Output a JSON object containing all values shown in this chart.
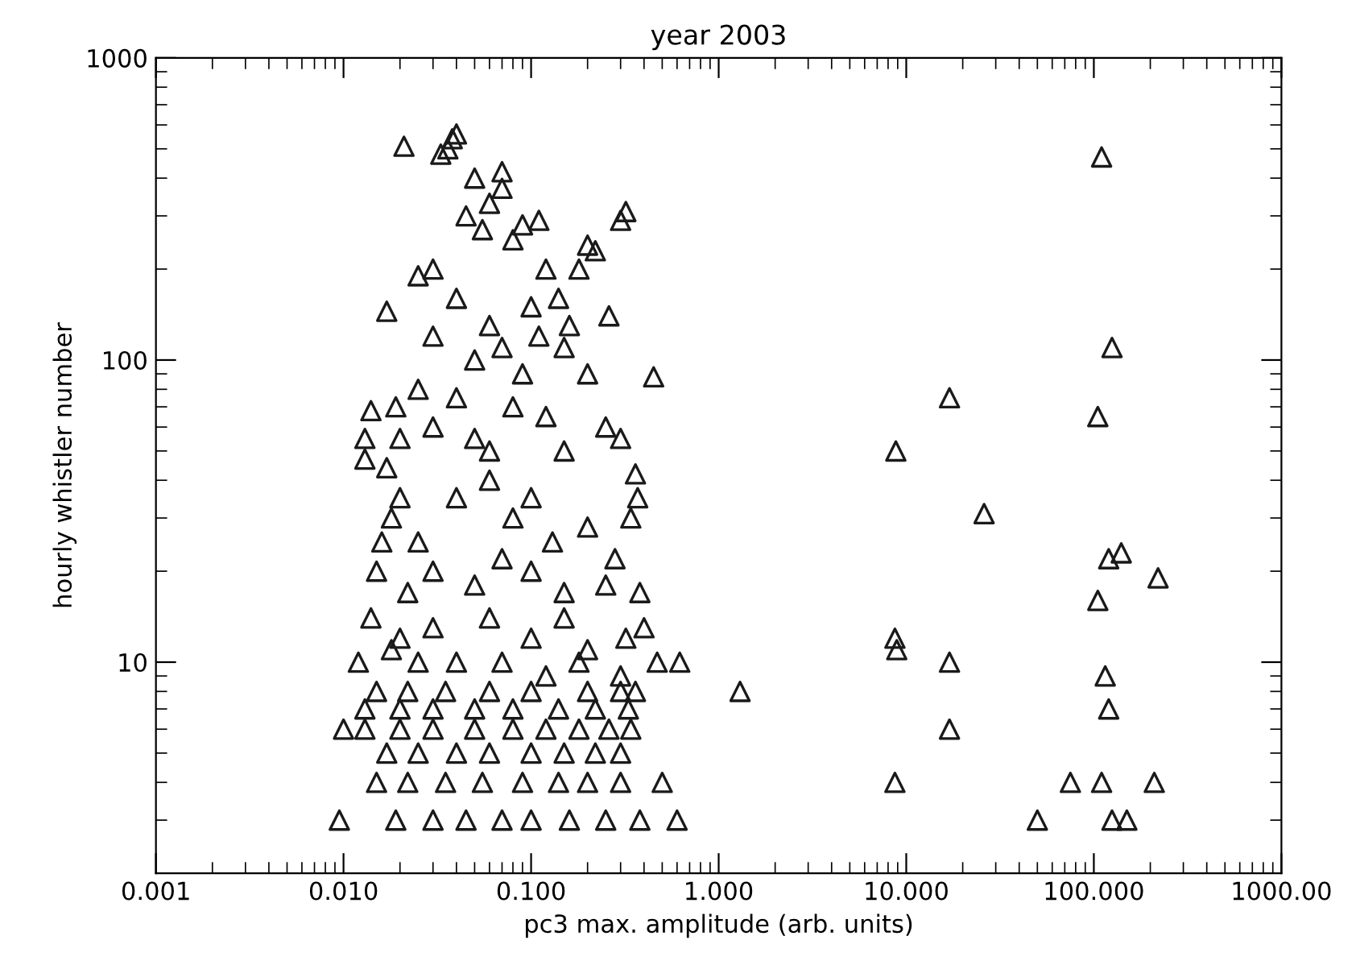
{
  "chart_data": {
    "type": "scatter",
    "title": "year 2003",
    "xlabel": "pc3 max. amplitude (arb. units)",
    "ylabel": "hourly whistler number",
    "log": "xy",
    "grid": false,
    "marker": "triangle",
    "color": "#1a1a1a",
    "xlim": [
      0.001,
      1000
    ],
    "ylim": [
      2,
      1000
    ],
    "xticks": [
      {
        "value": 0.001,
        "label": "0.001"
      },
      {
        "value": 0.01,
        "label": "0.010"
      },
      {
        "value": 0.1,
        "label": "0.100"
      },
      {
        "value": 1,
        "label": "1.000"
      },
      {
        "value": 10,
        "label": "10.000"
      },
      {
        "value": 100,
        "label": "100.000"
      },
      {
        "value": 1000,
        "label": "1000.00"
      }
    ],
    "yticks": [
      10,
      100,
      1000
    ],
    "x": [
      0.021,
      0.033,
      0.036,
      0.04,
      0.038,
      0.05,
      0.06,
      0.07,
      0.07,
      0.045,
      0.055,
      0.09,
      0.11,
      0.2,
      0.22,
      0.3,
      0.32,
      0.08,
      0.12,
      0.03,
      0.025,
      0.017,
      0.04,
      0.06,
      0.1,
      0.14,
      0.16,
      0.26,
      0.18,
      0.05,
      0.07,
      0.09,
      0.11,
      0.15,
      0.08,
      0.03,
      0.025,
      0.019,
      0.014,
      0.013,
      0.013,
      0.017,
      0.02,
      0.03,
      0.04,
      0.05,
      0.06,
      0.12,
      0.2,
      0.15,
      0.25,
      0.3,
      0.45,
      0.36,
      0.37,
      0.34,
      0.02,
      0.018,
      0.016,
      0.025,
      0.04,
      0.06,
      0.08,
      0.1,
      0.13,
      0.2,
      0.28,
      0.015,
      0.022,
      0.03,
      0.05,
      0.07,
      0.1,
      0.15,
      0.25,
      0.38,
      0.014,
      0.02,
      0.03,
      0.06,
      0.1,
      0.15,
      0.2,
      0.32,
      0.4,
      0.47,
      0.62,
      1.3,
      0.012,
      0.018,
      0.025,
      0.04,
      0.07,
      0.12,
      0.18,
      0.3,
      0.015,
      0.022,
      0.035,
      0.06,
      0.1,
      0.2,
      0.3,
      0.36,
      0.013,
      0.02,
      0.03,
      0.05,
      0.08,
      0.14,
      0.22,
      0.33,
      0.01,
      0.013,
      0.02,
      0.03,
      0.05,
      0.08,
      0.12,
      0.18,
      0.26,
      0.34,
      0.017,
      0.025,
      0.04,
      0.06,
      0.1,
      0.15,
      0.22,
      0.3,
      0.015,
      0.022,
      0.035,
      0.055,
      0.09,
      0.14,
      0.2,
      0.3,
      0.5,
      0.0095,
      0.019,
      0.03,
      0.045,
      0.07,
      0.1,
      0.16,
      0.25,
      0.38,
      0.6,
      8.8,
      17,
      26,
      8.7,
      8.9,
      17,
      17,
      8.7,
      110,
      125,
      105,
      120,
      140,
      220,
      105,
      115,
      120,
      75,
      110,
      210,
      50,
      125,
      150
    ],
    "values": [
      510,
      480,
      500,
      560,
      540,
      400,
      330,
      420,
      370,
      300,
      270,
      280,
      290,
      240,
      230,
      290,
      310,
      250,
      200,
      200,
      190,
      145,
      160,
      130,
      150,
      160,
      130,
      140,
      200,
      100,
      110,
      90,
      120,
      110,
      70,
      120,
      80,
      70,
      68,
      55,
      47,
      44,
      55,
      60,
      75,
      55,
      50,
      65,
      90,
      50,
      60,
      55,
      88,
      42,
      35,
      30,
      35,
      30,
      25,
      25,
      35,
      40,
      30,
      35,
      25,
      28,
      22,
      20,
      17,
      20,
      18,
      22,
      20,
      17,
      18,
      17,
      14,
      12,
      13,
      14,
      12,
      14,
      11,
      12,
      13,
      10,
      10,
      8,
      10,
      11,
      10,
      10,
      10,
      9,
      10,
      9,
      8,
      8,
      8,
      8,
      8,
      8,
      8,
      8,
      7,
      7,
      7,
      7,
      7,
      7,
      7,
      7,
      6,
      6,
      6,
      6,
      6,
      6,
      6,
      6,
      6,
      6,
      5,
      5,
      5,
      5,
      5,
      5,
      5,
      5,
      4,
      4,
      4,
      4,
      4,
      4,
      4,
      4,
      4,
      3,
      3,
      3,
      3,
      3,
      3,
      3,
      3,
      3,
      3,
      50,
      75,
      31,
      12,
      11,
      10,
      6,
      4,
      470,
      110,
      65,
      22,
      23,
      19,
      16,
      9,
      7,
      4,
      4,
      4,
      3,
      3,
      3
    ]
  }
}
